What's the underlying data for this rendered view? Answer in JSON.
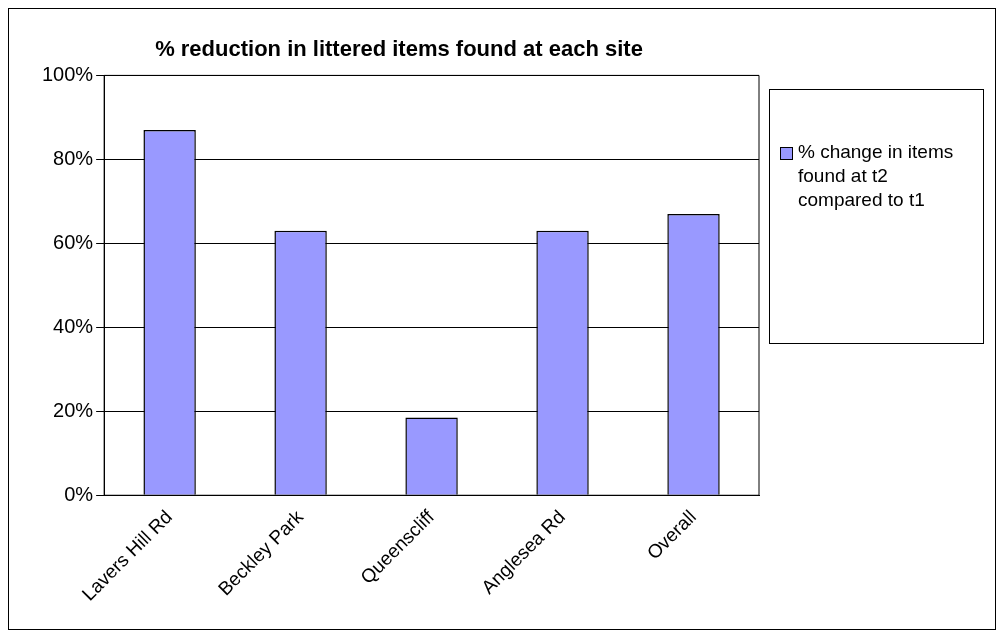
{
  "chart_data": {
    "type": "bar",
    "title": "% reduction in littered items found at each site",
    "categories": [
      "Lavers Hill Rd",
      "Beckley Park",
      "Queenscliff",
      "Anglesea Rd",
      "Overall"
    ],
    "series": [
      {
        "name": "% change in items found at t2 compared to t1",
        "color": "#9999ff",
        "values": [
          87,
          63,
          18.5,
          63,
          67
        ]
      }
    ],
    "ylim": [
      0,
      100
    ],
    "yticks": [
      {
        "value": 0,
        "label": "0%"
      },
      {
        "value": 20,
        "label": "20%"
      },
      {
        "value": 40,
        "label": "40%"
      },
      {
        "value": 60,
        "label": "60%"
      },
      {
        "value": 80,
        "label": "80%"
      },
      {
        "value": 100,
        "label": "100%"
      }
    ],
    "grid": "y",
    "legend": "right"
  }
}
